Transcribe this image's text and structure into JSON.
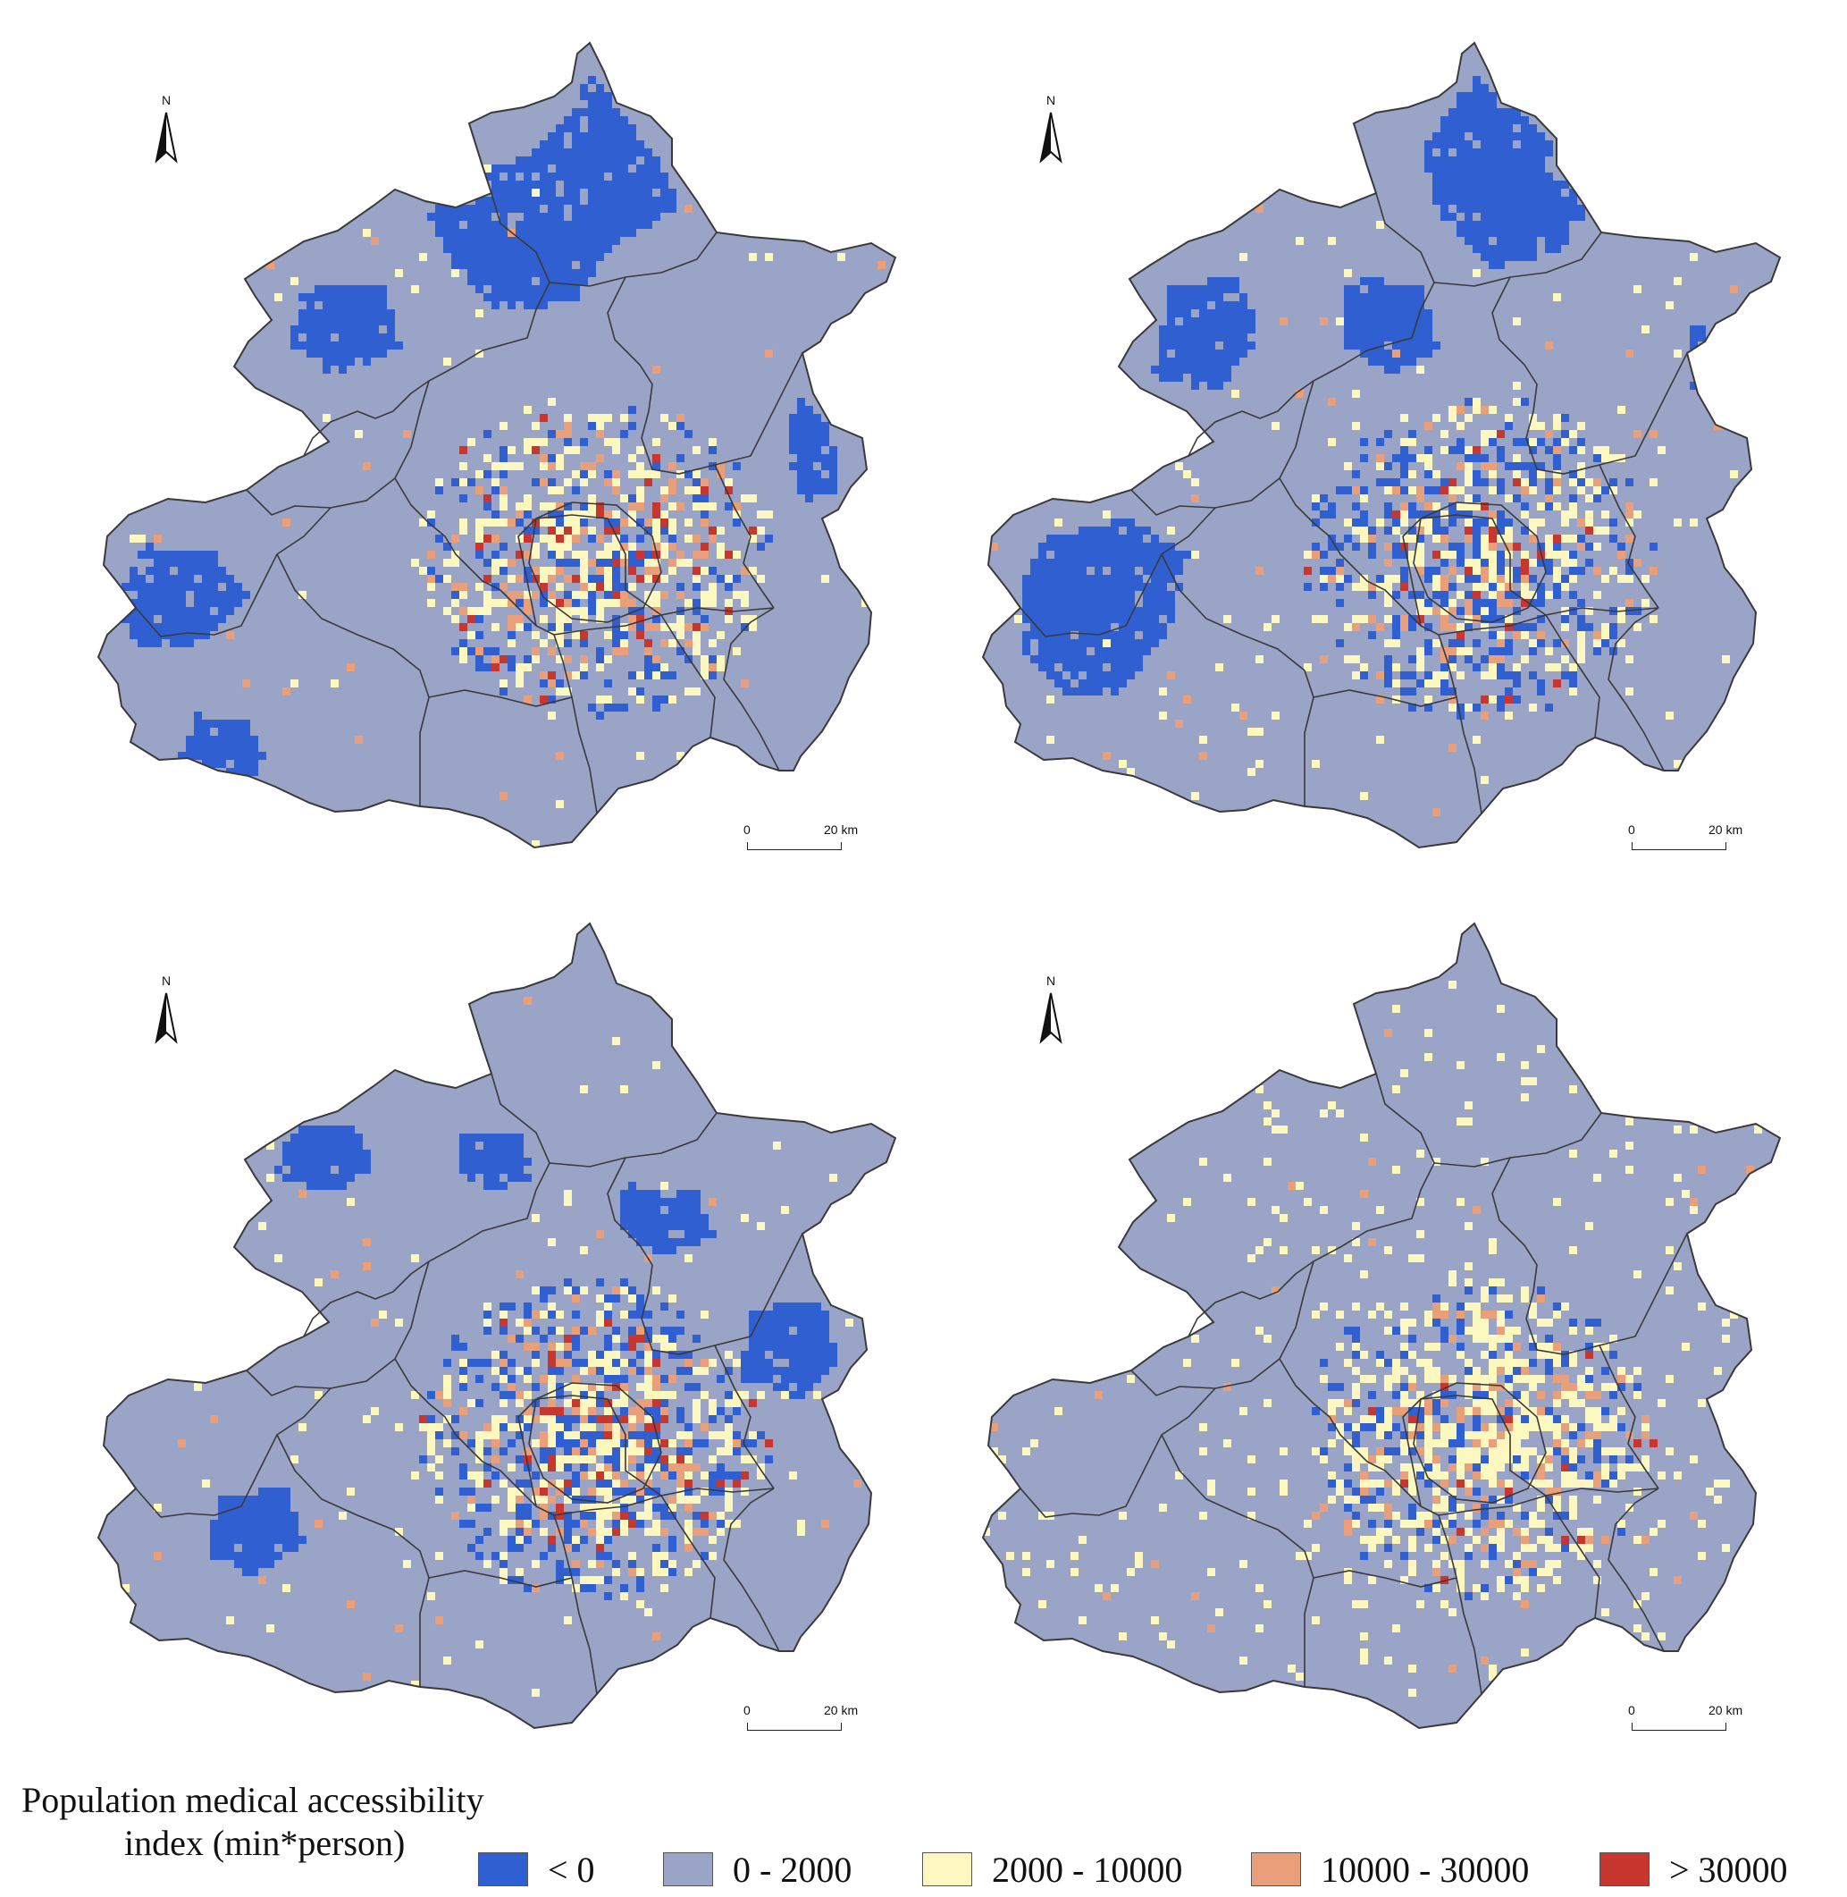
{
  "panels": [
    {
      "id": "top-left",
      "north": "N",
      "scale": {
        "start": "0",
        "end": "20 km"
      },
      "composition": {
        "low_blue": 0.42,
        "urban_blue": 0.12,
        "yellow": 0.22,
        "orange": 0.1,
        "red": 0.06,
        "rural_yellow": 0.03
      }
    },
    {
      "id": "top-right",
      "north": "N",
      "scale": {
        "start": "0",
        "end": "20 km"
      },
      "composition": {
        "low_blue": 0.38,
        "urban_blue": 0.22,
        "yellow": 0.2,
        "orange": 0.07,
        "red": 0.03,
        "rural_yellow": 0.05
      }
    },
    {
      "id": "bottom-left",
      "north": "N",
      "scale": {
        "start": "0",
        "end": "20 km"
      },
      "composition": {
        "low_blue": 0.28,
        "urban_blue": 0.2,
        "yellow": 0.22,
        "orange": 0.1,
        "red": 0.05,
        "rural_yellow": 0.04
      }
    },
    {
      "id": "bottom-right",
      "north": "N",
      "scale": {
        "start": "0",
        "end": "20 km"
      },
      "composition": {
        "low_blue": 0.02,
        "urban_blue": 0.12,
        "yellow": 0.3,
        "orange": 0.08,
        "red": 0.03,
        "rural_yellow": 0.12
      }
    }
  ],
  "legend": {
    "title_line1": "Population medical accessibility",
    "title_line2": "index (min*person)",
    "items": [
      {
        "label": "< 0",
        "color": "#2f5fd1"
      },
      {
        "label": "0 - 2000",
        "color": "#9aa4c7"
      },
      {
        "label": "2000 - 10000",
        "color": "#fdf7c0"
      },
      {
        "label": "10000 - 30000",
        "color": "#e9a07a"
      },
      {
        "label": "> 30000",
        "color": "#c8372f"
      }
    ]
  },
  "colors": {
    "base": "#9aa4c7",
    "low": "#2f5fd1",
    "mid": "#fdf7c0",
    "high": "#e9a07a",
    "vhigh": "#c8372f",
    "border": "#3a3a3a"
  }
}
